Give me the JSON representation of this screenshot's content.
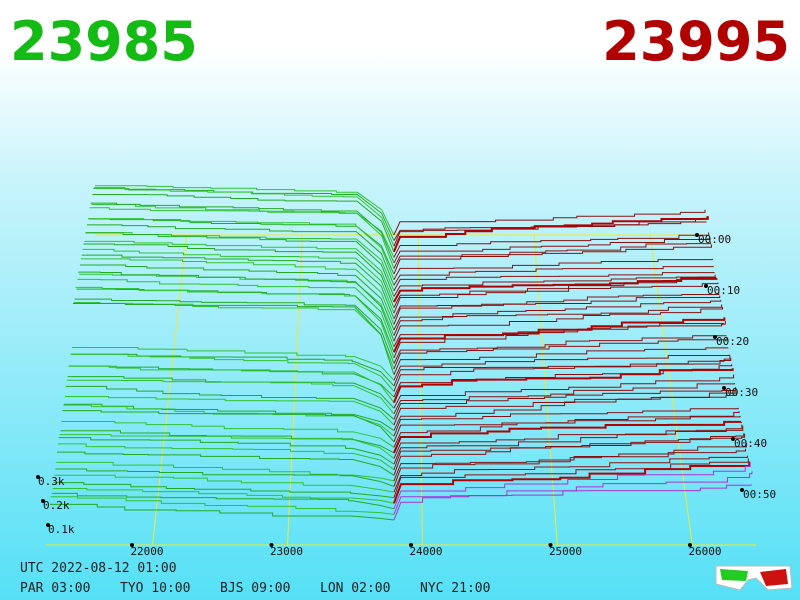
{
  "header": {
    "bid": "23985",
    "ask": "23995"
  },
  "price_axis": [
    "22000",
    "23000",
    "24000",
    "25000",
    "26000"
  ],
  "depth_axis": [
    "0.3k",
    "0.2k",
    "0.1k"
  ],
  "time_axis": [
    "00:00",
    "00:10",
    "00:20",
    "00:30",
    "00:40",
    "00:50"
  ],
  "footer": {
    "utc": "UTC 2022-08-12 01:00",
    "zones": [
      "PAR 03:00",
      "TYO 10:00",
      "BJS 09:00",
      "LON 02:00",
      "NYC 21:00"
    ]
  }
}
